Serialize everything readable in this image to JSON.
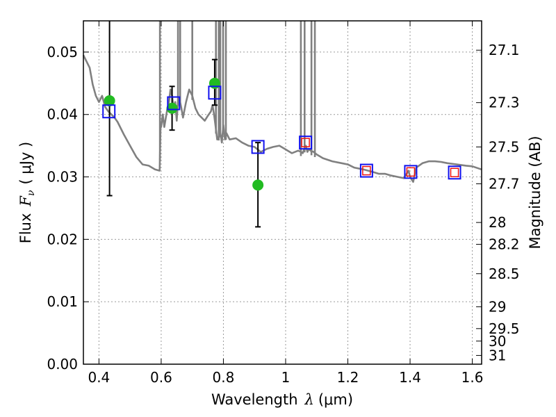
{
  "chart_data": {
    "type": "scatter",
    "xlabel_prefix": "Wavelength",
    "xlabel_symbol": "λ",
    "xlabel_unit": "(μm)",
    "ylabel_prefix": "Flux",
    "ylabel_symbol": "F",
    "ylabel_subscript": "ν",
    "ylabel_unit": "( μJy )",
    "y2label": "Magnitude (AB)",
    "xlim": [
      0.35,
      1.63
    ],
    "ylim": [
      0.0,
      0.055
    ],
    "grid": true,
    "x_ticks": [
      {
        "value": 0.4,
        "label": "0.4"
      },
      {
        "value": 0.6,
        "label": "0.6"
      },
      {
        "value": 0.8,
        "label": "0.8"
      },
      {
        "value": 1.0,
        "label": "1"
      },
      {
        "value": 1.2,
        "label": "1.2"
      },
      {
        "value": 1.4,
        "label": "1.4"
      },
      {
        "value": 1.6,
        "label": "1.6"
      }
    ],
    "y_ticks": [
      {
        "value": 0.0,
        "label": "0.00"
      },
      {
        "value": 0.01,
        "label": "0.01"
      },
      {
        "value": 0.02,
        "label": "0.02"
      },
      {
        "value": 0.03,
        "label": "0.03"
      },
      {
        "value": 0.04,
        "label": "0.04"
      },
      {
        "value": 0.05,
        "label": "0.05"
      }
    ],
    "y2_ticks": [
      {
        "label": "27.1",
        "flux": 0.0503
      },
      {
        "label": "27.3",
        "flux": 0.0419
      },
      {
        "label": "27.5",
        "flux": 0.0348
      },
      {
        "label": "27.7",
        "flux": 0.0289
      },
      {
        "label": "28",
        "flux": 0.0227
      },
      {
        "label": "28.2",
        "flux": 0.0192
      },
      {
        "label": "28.5",
        "flux": 0.0145
      },
      {
        "label": "29",
        "flux": 0.0092
      },
      {
        "label": "29.5",
        "flux": 0.0057
      },
      {
        "label": "30",
        "flux": 0.0037
      },
      {
        "label": "31",
        "flux": 0.0014
      }
    ],
    "colors": {
      "sed": "#808080",
      "observed": "#22bb22",
      "model_box": "#1111ee",
      "model_inner": "#ee1111",
      "errorbar": "#000000",
      "grid": "#9a9a9a"
    },
    "series": [
      {
        "kind": "model_sed_line",
        "x": [
          0.35,
          0.37,
          0.38,
          0.39,
          0.4,
          0.41,
          0.42,
          0.43,
          0.44,
          0.45,
          0.46,
          0.47,
          0.48,
          0.5,
          0.52,
          0.54,
          0.56,
          0.58,
          0.595,
          0.598,
          0.6,
          0.605,
          0.61,
          0.62,
          0.625,
          0.63,
          0.635,
          0.64,
          0.645,
          0.65,
          0.655,
          0.66,
          0.665,
          0.67,
          0.68,
          0.69,
          0.7,
          0.71,
          0.72,
          0.73,
          0.74,
          0.75,
          0.76,
          0.765,
          0.77,
          0.775,
          0.78,
          0.79,
          0.795,
          0.8,
          0.805,
          0.81,
          0.82,
          0.84,
          0.86,
          0.88,
          0.9,
          0.92,
          0.94,
          0.96,
          0.98,
          1.0,
          1.02,
          1.04,
          1.05,
          1.055,
          1.06,
          1.065,
          1.07,
          1.075,
          1.08,
          1.09,
          1.1,
          1.12,
          1.15,
          1.18,
          1.2,
          1.22,
          1.25,
          1.28,
          1.3,
          1.32,
          1.34,
          1.36,
          1.38,
          1.395,
          1.4,
          1.41,
          1.42,
          1.44,
          1.46,
          1.48,
          1.5,
          1.52,
          1.55,
          1.58,
          1.6,
          1.63
        ],
        "y": [
          0.0495,
          0.0475,
          0.0448,
          0.043,
          0.042,
          0.043,
          0.0412,
          0.0405,
          0.04,
          0.0395,
          0.0388,
          0.0378,
          0.0368,
          0.035,
          0.0332,
          0.032,
          0.0318,
          0.0312,
          0.031,
          0.038,
          0.038,
          0.04,
          0.038,
          0.041,
          0.042,
          0.044,
          0.043,
          0.041,
          0.042,
          0.039,
          0.0428,
          0.0422,
          0.041,
          0.0395,
          0.042,
          0.044,
          0.043,
          0.041,
          0.04,
          0.0395,
          0.039,
          0.0398,
          0.0405,
          0.0415,
          0.04,
          0.038,
          0.036,
          0.037,
          0.0355,
          0.0383,
          0.036,
          0.037,
          0.036,
          0.0362,
          0.0355,
          0.035,
          0.0348,
          0.034,
          0.0345,
          0.0348,
          0.035,
          0.0344,
          0.0338,
          0.0342,
          0.034,
          0.0338,
          0.0345,
          0.035,
          0.034,
          0.0345,
          0.0342,
          0.034,
          0.0336,
          0.033,
          0.0325,
          0.0322,
          0.032,
          0.0315,
          0.0312,
          0.0308,
          0.0305,
          0.0305,
          0.0302,
          0.03,
          0.0298,
          0.031,
          0.03,
          0.0292,
          0.0315,
          0.0322,
          0.0325,
          0.0325,
          0.0324,
          0.0322,
          0.032,
          0.0318,
          0.0317,
          0.0312
        ]
      },
      {
        "kind": "emission_line_spikes",
        "x": [
          0.596,
          0.654,
          0.661,
          0.7,
          0.776,
          0.785,
          0.79,
          0.799,
          0.808,
          1.049,
          1.061,
          1.083,
          1.094
        ]
      },
      {
        "kind": "observed_points",
        "x": [
          0.434,
          0.635,
          0.772,
          0.911
        ],
        "y": [
          0.0422,
          0.041,
          0.045,
          0.0287
        ],
        "y_err_low": [
          0.027,
          0.0375,
          0.0415,
          0.022
        ],
        "y_err_high": [
          0.0555,
          0.0445,
          0.0488,
          0.0355
        ]
      },
      {
        "kind": "model_photometry_boxes",
        "x": [
          0.432,
          0.64,
          0.772,
          0.911,
          1.064,
          1.26,
          1.402,
          1.543
        ],
        "y": [
          0.0405,
          0.0418,
          0.0435,
          0.0348,
          0.0355,
          0.031,
          0.0308,
          0.0307
        ],
        "inner_red": [
          false,
          false,
          false,
          false,
          true,
          true,
          true,
          true
        ]
      }
    ]
  }
}
